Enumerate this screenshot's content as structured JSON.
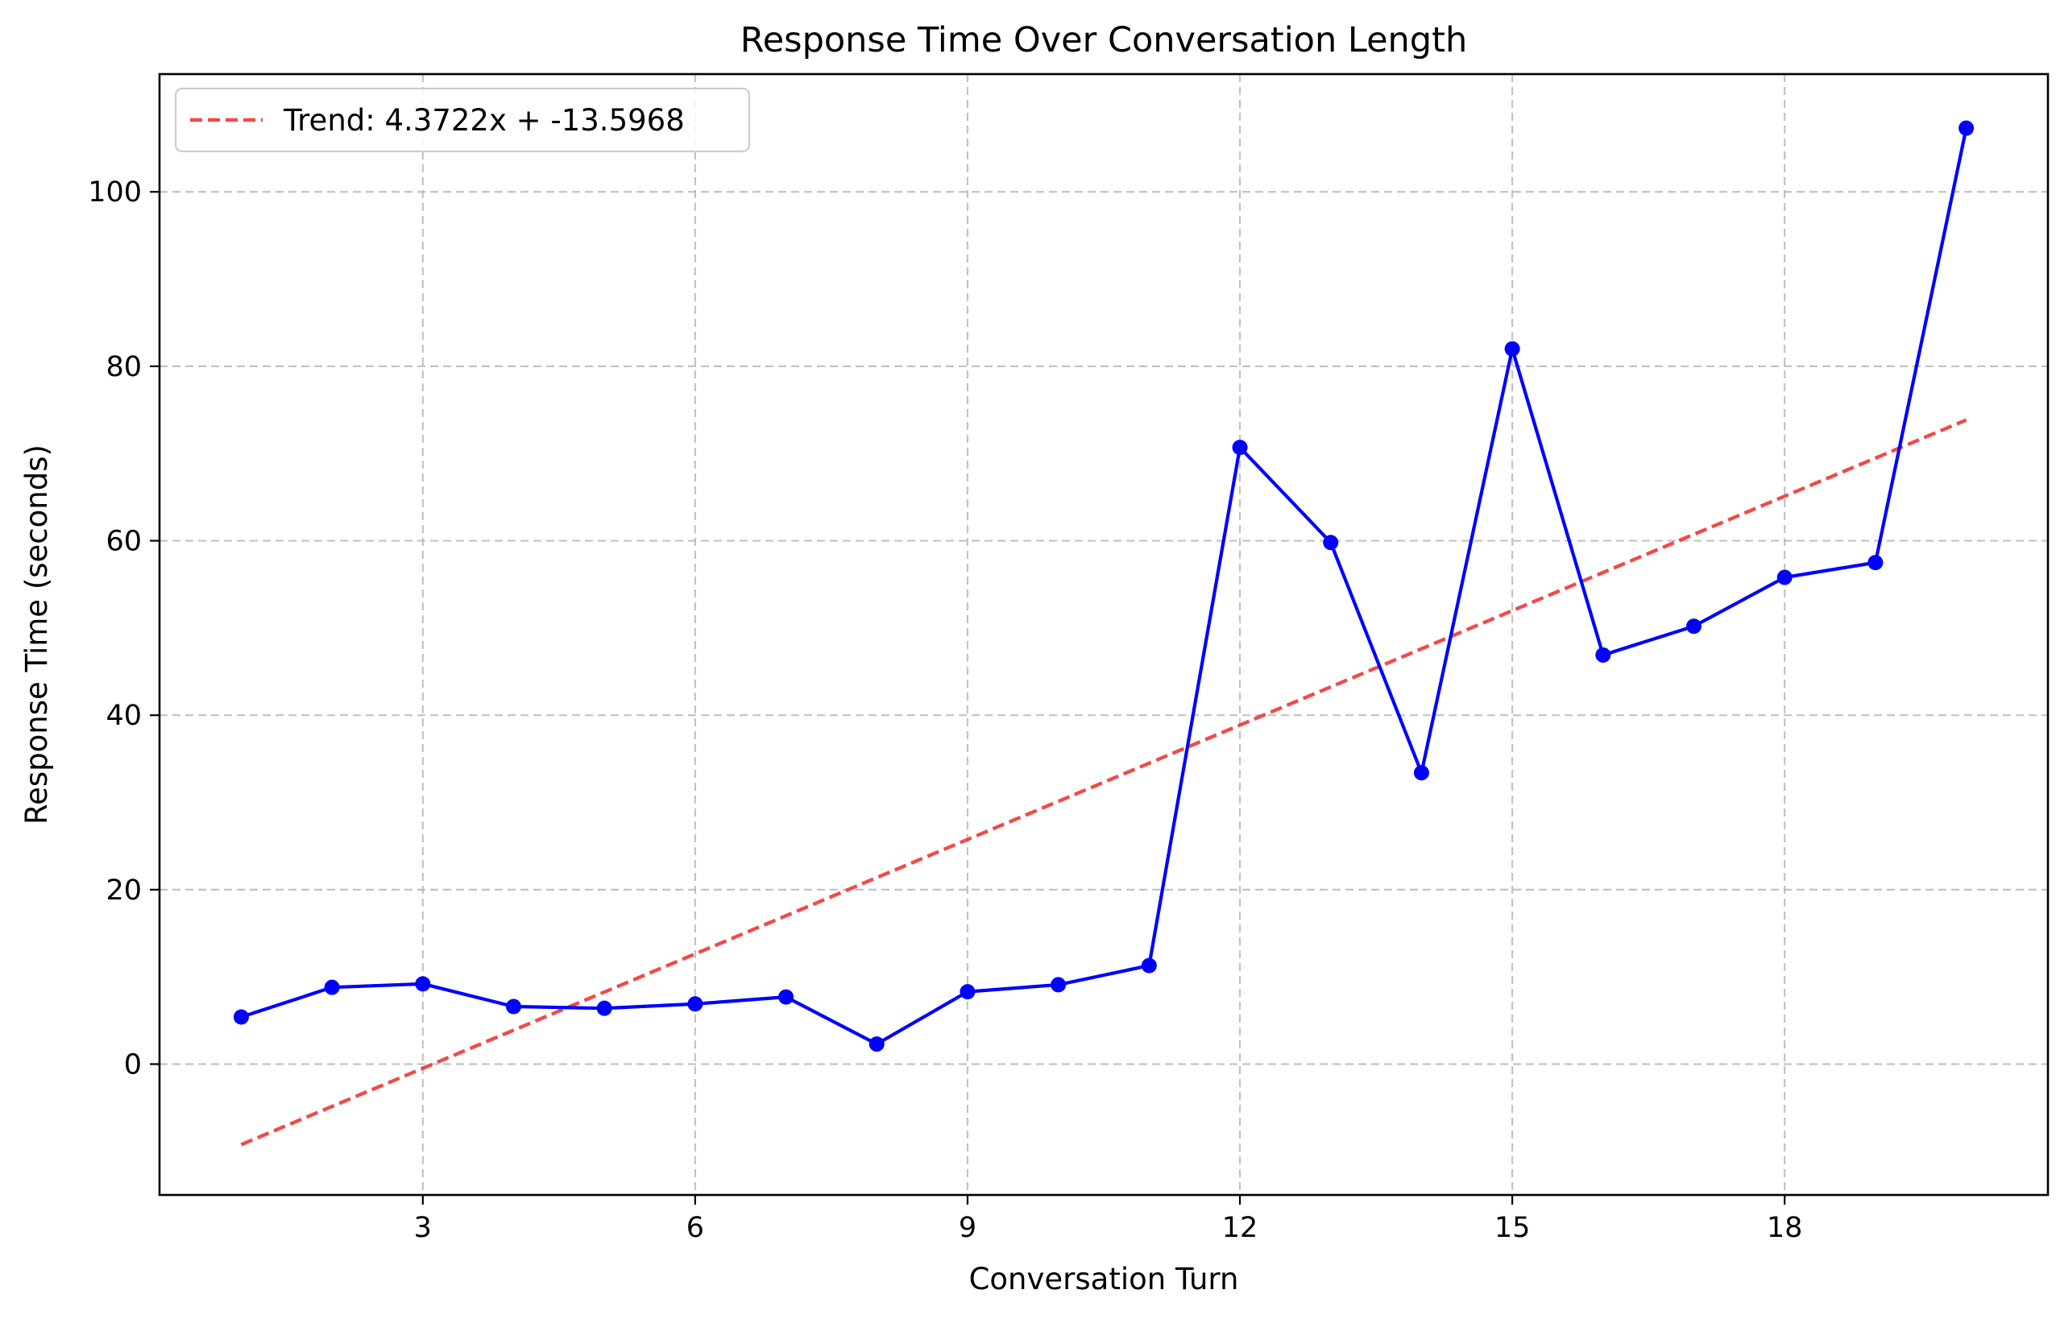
{
  "chart_data": {
    "type": "line",
    "title": "Response Time Over Conversation Length",
    "xlabel": "Conversation Turn",
    "ylabel": "Response Time (seconds)",
    "xlim": [
      0.1,
      20.9
    ],
    "ylim": [
      -15,
      113.5
    ],
    "xticks": [
      3,
      6,
      9,
      12,
      15,
      18
    ],
    "yticks": [
      0,
      20,
      40,
      60,
      80,
      100
    ],
    "grid": true,
    "legend_position": "top-left",
    "series": [
      {
        "kind": "line-with-markers",
        "color": "#0000ff",
        "x": [
          1,
          2,
          3,
          4,
          5,
          6,
          7,
          8,
          9,
          10,
          11,
          12,
          13,
          14,
          15,
          16,
          17,
          18,
          19,
          20
        ],
        "y": [
          5.4,
          8.8,
          9.2,
          6.6,
          6.4,
          6.9,
          7.7,
          2.3,
          8.3,
          9.1,
          11.3,
          70.7,
          59.8,
          33.4,
          82.0,
          46.9,
          50.2,
          55.8,
          57.5,
          107.3
        ]
      },
      {
        "name": "Trend: 4.3722x + -13.5968",
        "kind": "dashed-trend-line",
        "color": "#f04040",
        "slope": 4.3722,
        "intercept": -13.5968,
        "x": [
          1,
          20
        ]
      }
    ]
  }
}
